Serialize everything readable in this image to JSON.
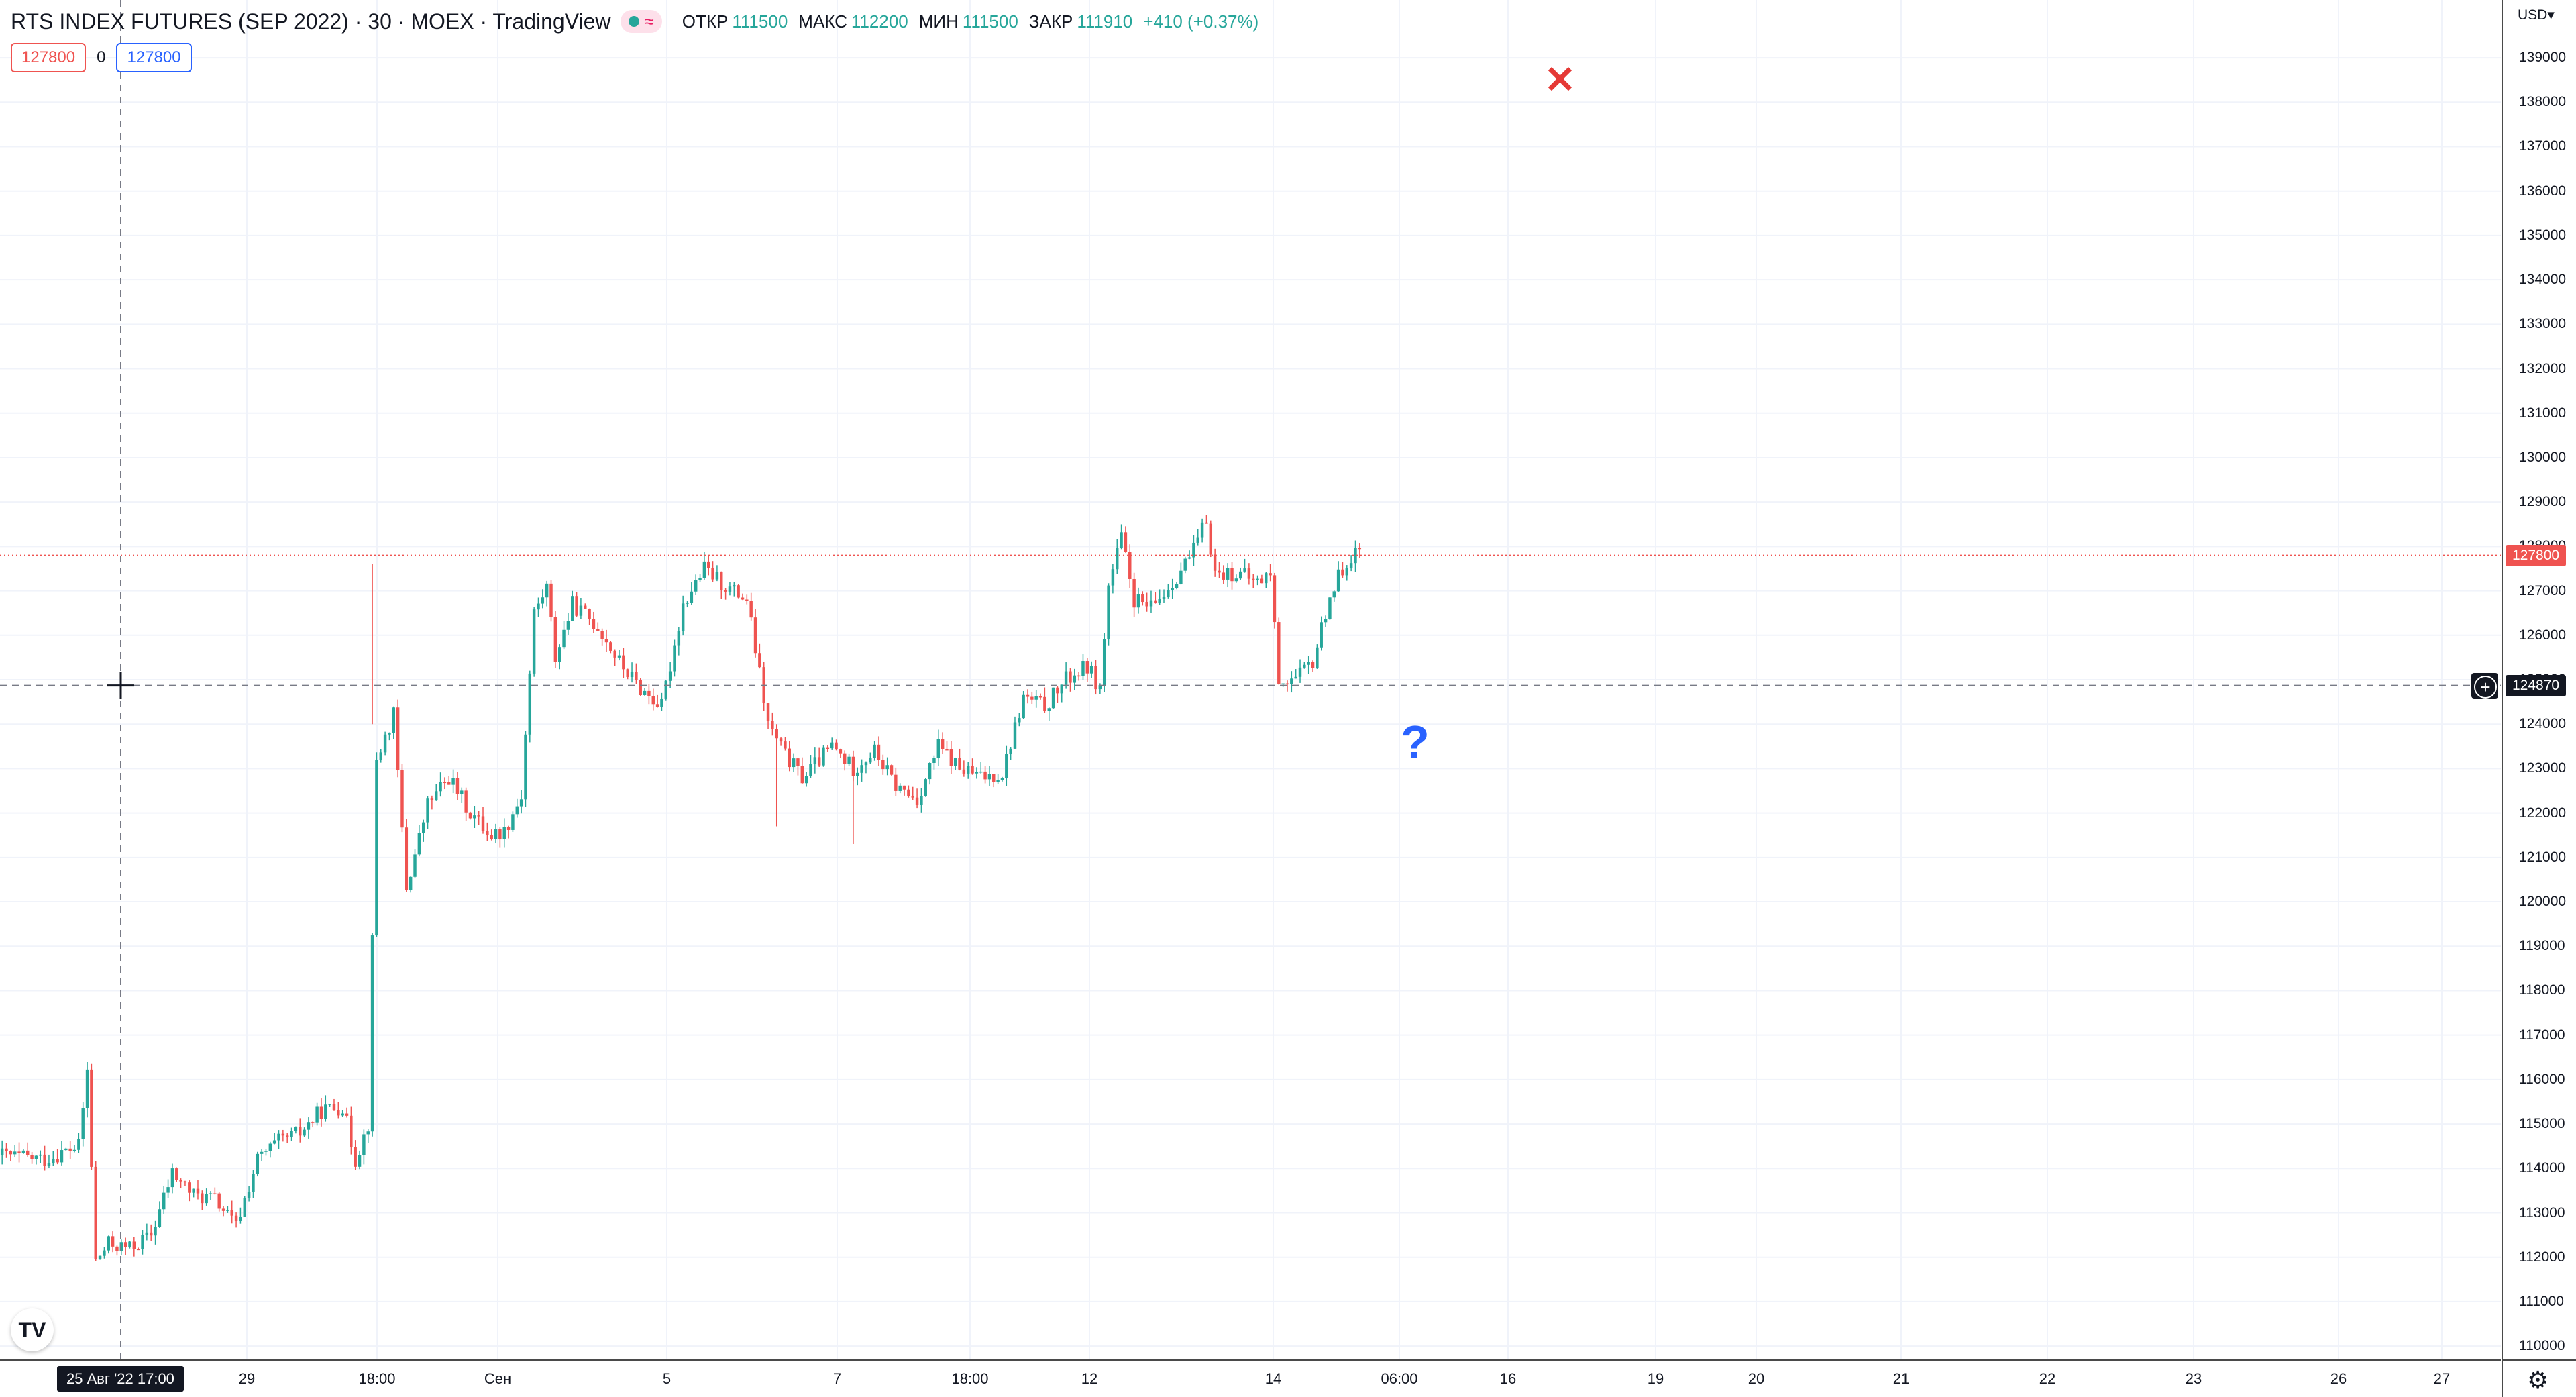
{
  "header": {
    "symbol_title": "RTS INDEX FUTURES (SEP 2022) · 30 · MOEX · TradingView",
    "ohlc": [
      {
        "label": "ОТКР",
        "value": "111500"
      },
      {
        "label": "МАКС",
        "value": "112200"
      },
      {
        "label": "МИН",
        "value": "111500"
      },
      {
        "label": "ЗАКР",
        "value": "111910"
      },
      {
        "label": "",
        "value": "+410 (+0.37%)"
      }
    ],
    "wave_icon": "≈"
  },
  "order": {
    "sell_price": "127800",
    "qty": "0",
    "buy_price": "127800"
  },
  "axis": {
    "currency": "USD",
    "currency_arrow": "▾",
    "current_price_badge": "127800",
    "crosshair_price_badge": "124870",
    "crosshair_time_label": "25 Авг '22   17:00",
    "plus_icon": "+",
    "settings_icon": "⚙"
  },
  "markers": {
    "x_mark": "✕",
    "question_mark": "?"
  },
  "logo_text": "TV",
  "colors": {
    "up": "#26a69a",
    "down": "#ef5350",
    "grid": "#f0f3fa",
    "price_line": "#ef5350",
    "crosshair": "#787b86"
  },
  "chart_data": {
    "type": "candlestick",
    "title": "RTS INDEX FUTURES (SEP 2022) · 30 · MOEX · TradingView",
    "y_ticks": [
      110000,
      111000,
      112000,
      113000,
      114000,
      115000,
      116000,
      117000,
      118000,
      119000,
      120000,
      121000,
      122000,
      123000,
      124000,
      125000,
      126000,
      127000,
      128000,
      129000,
      130000,
      131000,
      132000,
      133000,
      134000,
      135000,
      136000,
      137000,
      138000,
      139000
    ],
    "x_tick_labels": [
      "29",
      "18:00",
      "Сен",
      "5",
      "7",
      "18:00",
      "12",
      "14",
      "06:00",
      "16",
      "19",
      "20",
      "21",
      "22",
      "23",
      "26",
      "27"
    ],
    "ylim": [
      109700,
      140300
    ],
    "last_price": 127800,
    "crosshair_price": 124870,
    "price_path": [
      [
        0,
        114300
      ],
      [
        10,
        114200
      ],
      [
        18,
        114500
      ],
      [
        20,
        116200
      ],
      [
        22,
        111900
      ],
      [
        25,
        112300
      ],
      [
        30,
        112200
      ],
      [
        35,
        112500
      ],
      [
        40,
        113900
      ],
      [
        45,
        113400
      ],
      [
        50,
        113300
      ],
      [
        55,
        112700
      ],
      [
        60,
        114200
      ],
      [
        65,
        114600
      ],
      [
        70,
        114800
      ],
      [
        75,
        115300
      ],
      [
        80,
        115400
      ],
      [
        83,
        114200
      ],
      [
        86,
        115000
      ],
      [
        88,
        123200
      ],
      [
        92,
        124200
      ],
      [
        95,
        120300
      ],
      [
        100,
        122200
      ],
      [
        105,
        122800
      ],
      [
        110,
        122000
      ],
      [
        115,
        121500
      ],
      [
        118,
        121600
      ],
      [
        122,
        122400
      ],
      [
        125,
        126500
      ],
      [
        128,
        127100
      ],
      [
        130,
        125500
      ],
      [
        134,
        126700
      ],
      [
        140,
        126200
      ],
      [
        145,
        125400
      ],
      [
        150,
        124800
      ],
      [
        155,
        124400
      ],
      [
        160,
        126700
      ],
      [
        165,
        127500
      ],
      [
        170,
        127100
      ],
      [
        175,
        126800
      ],
      [
        180,
        124000
      ],
      [
        184,
        123300
      ],
      [
        188,
        122800
      ],
      [
        195,
        123500
      ],
      [
        200,
        123000
      ],
      [
        205,
        123400
      ],
      [
        210,
        122600
      ],
      [
        215,
        122300
      ],
      [
        220,
        123500
      ],
      [
        225,
        123000
      ],
      [
        230,
        122800
      ],
      [
        235,
        122900
      ],
      [
        240,
        124600
      ],
      [
        245,
        124400
      ],
      [
        250,
        125000
      ],
      [
        255,
        125300
      ],
      [
        258,
        124800
      ],
      [
        260,
        127100
      ],
      [
        263,
        128200
      ],
      [
        266,
        126800
      ],
      [
        270,
        126600
      ],
      [
        275,
        127200
      ],
      [
        280,
        127900
      ],
      [
        283,
        128600
      ],
      [
        285,
        127400
      ],
      [
        290,
        127400
      ],
      [
        295,
        127200
      ],
      [
        298,
        127400
      ],
      [
        300,
        125000
      ],
      [
        304,
        125000
      ],
      [
        308,
        125400
      ],
      [
        312,
        126900
      ],
      [
        316,
        127700
      ],
      [
        320,
        128000
      ]
    ],
    "series": [
      {
        "name": "RTS INDEX FUTURES (SEP 2022)",
        "n_bars": 320,
        "last_close": 127800
      }
    ]
  }
}
